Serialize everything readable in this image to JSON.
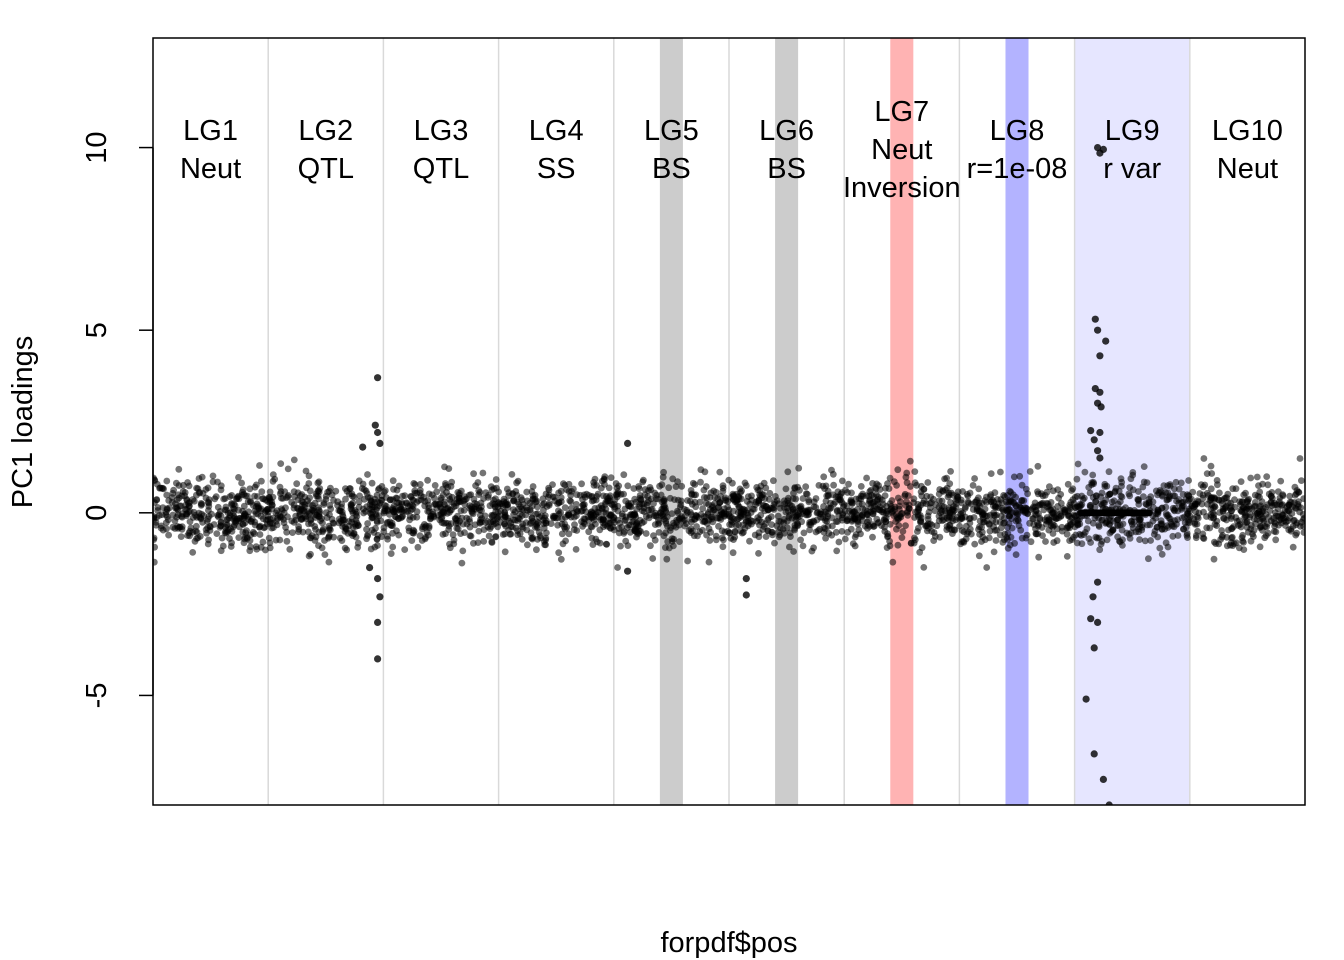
{
  "chart_data": {
    "type": "scatter",
    "title": "",
    "xlabel": "forpdf$pos",
    "ylabel": "PC1 loadings",
    "ylim": [
      -8,
      13
    ],
    "yticks": [
      -5,
      0,
      5,
      10
    ],
    "ytick_labels": [
      "-5",
      "0",
      "5",
      "10"
    ],
    "xticks": [],
    "grid": false,
    "point_color": "#000000",
    "point_alpha": 0.55,
    "linkage_groups": [
      {
        "id": 1,
        "label": "LG1",
        "desc": "Neut"
      },
      {
        "id": 2,
        "label": "LG2",
        "desc": "QTL"
      },
      {
        "id": 3,
        "label": "LG3",
        "desc": "QTL"
      },
      {
        "id": 4,
        "label": "LG4",
        "desc": "SS"
      },
      {
        "id": 5,
        "label": "LG5",
        "desc": "BS"
      },
      {
        "id": 6,
        "label": "LG6",
        "desc": "BS"
      },
      {
        "id": 7,
        "label": "LG7",
        "desc": "Neut\nInversion"
      },
      {
        "id": 8,
        "label": "LG8",
        "desc": "r=1e-08"
      },
      {
        "id": 9,
        "label": "LG9",
        "desc": "r var"
      },
      {
        "id": 10,
        "label": "LG10",
        "desc": "Neut"
      }
    ],
    "highlight_regions": [
      {
        "lg": 5,
        "start": 0.4,
        "end": 0.6,
        "color": "#cccccc"
      },
      {
        "lg": 6,
        "start": 0.4,
        "end": 0.6,
        "color": "#cccccc"
      },
      {
        "lg": 7,
        "start": 0.4,
        "end": 0.6,
        "color": "#ffb3b3"
      },
      {
        "lg": 8,
        "start": 0.4,
        "end": 0.6,
        "color": "#b3b3ff"
      },
      {
        "lg": 9,
        "start": 0.0,
        "end": 1.0,
        "color": "#e6e6ff"
      }
    ],
    "typical_noise_sd": 0.45,
    "outliers": [
      {
        "lg": 2,
        "pos": 0.95,
        "y": 3.7
      },
      {
        "lg": 2,
        "pos": 0.93,
        "y": 2.4
      },
      {
        "lg": 2,
        "pos": 0.95,
        "y": 2.2
      },
      {
        "lg": 2,
        "pos": 0.97,
        "y": 1.9
      },
      {
        "lg": 2,
        "pos": 0.82,
        "y": 1.8
      },
      {
        "lg": 2,
        "pos": 0.88,
        "y": -1.5
      },
      {
        "lg": 2,
        "pos": 0.95,
        "y": -1.8
      },
      {
        "lg": 2,
        "pos": 0.97,
        "y": -2.3
      },
      {
        "lg": 2,
        "pos": 0.95,
        "y": -3.0
      },
      {
        "lg": 2,
        "pos": 0.95,
        "y": -4.0
      },
      {
        "lg": 5,
        "pos": 0.12,
        "y": 1.9
      },
      {
        "lg": 5,
        "pos": 0.12,
        "y": -1.6
      },
      {
        "lg": 6,
        "pos": 0.15,
        "y": -1.8
      },
      {
        "lg": 6,
        "pos": 0.15,
        "y": -2.25
      },
      {
        "lg": 9,
        "pos": 0.2,
        "y": 10.0
      },
      {
        "lg": 9,
        "pos": 0.25,
        "y": 9.95
      },
      {
        "lg": 9,
        "pos": 0.22,
        "y": 9.85
      },
      {
        "lg": 9,
        "pos": 0.18,
        "y": 5.3
      },
      {
        "lg": 9,
        "pos": 0.2,
        "y": 5.0
      },
      {
        "lg": 9,
        "pos": 0.27,
        "y": 4.7
      },
      {
        "lg": 9,
        "pos": 0.22,
        "y": 4.3
      },
      {
        "lg": 9,
        "pos": 0.18,
        "y": 3.4
      },
      {
        "lg": 9,
        "pos": 0.22,
        "y": 3.3
      },
      {
        "lg": 9,
        "pos": 0.2,
        "y": 3.0
      },
      {
        "lg": 9,
        "pos": 0.23,
        "y": 2.9
      },
      {
        "lg": 9,
        "pos": 0.14,
        "y": 2.25
      },
      {
        "lg": 9,
        "pos": 0.22,
        "y": 2.2
      },
      {
        "lg": 9,
        "pos": 0.17,
        "y": 2.0
      },
      {
        "lg": 9,
        "pos": 0.2,
        "y": 1.7
      },
      {
        "lg": 9,
        "pos": 0.22,
        "y": 1.5
      },
      {
        "lg": 9,
        "pos": 0.2,
        "y": -1.9
      },
      {
        "lg": 9,
        "pos": 0.16,
        "y": -2.3
      },
      {
        "lg": 9,
        "pos": 0.14,
        "y": -2.9
      },
      {
        "lg": 9,
        "pos": 0.2,
        "y": -3.0
      },
      {
        "lg": 9,
        "pos": 0.17,
        "y": -3.7
      },
      {
        "lg": 9,
        "pos": 0.1,
        "y": -5.1
      },
      {
        "lg": 9,
        "pos": 0.17,
        "y": -6.6
      },
      {
        "lg": 9,
        "pos": 0.25,
        "y": -7.3
      },
      {
        "lg": 9,
        "pos": 0.3,
        "y": -8.0
      }
    ],
    "lg9_flat_band": {
      "lg": 9,
      "start": 0.05,
      "end": 0.65,
      "y": 0.0
    }
  }
}
